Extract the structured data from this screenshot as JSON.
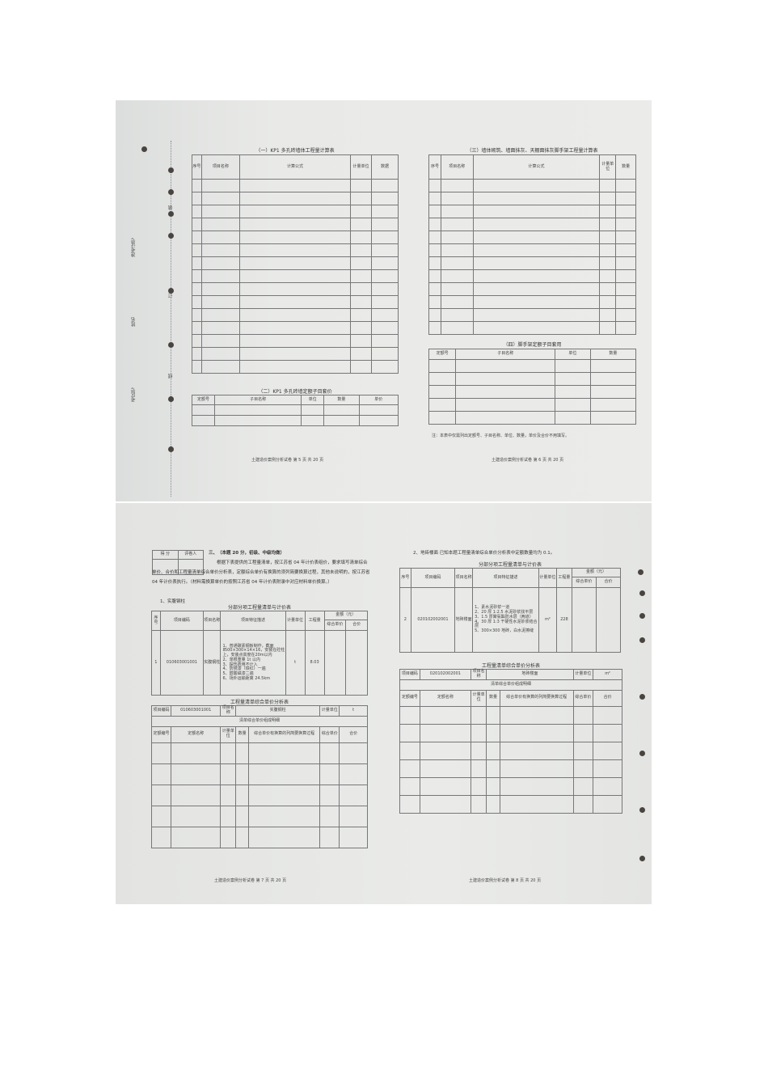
{
  "sheet1": {
    "margin": {
      "label1": "准考证号",
      "label2": "姓名",
      "label3": "考区号",
      "bind1": "装",
      "bind2": "订",
      "bind3": "线"
    },
    "table1": {
      "title": "（一）KP1 多孔砖墙体工程量计算表",
      "headers": [
        "序号",
        "项目名称",
        "计算公式",
        "计量单位",
        "数据"
      ]
    },
    "table2": {
      "title": "（二）KP1 多孔砖墙定额子目套价",
      "headers": [
        "定额号",
        "子目名称",
        "单位",
        "数量",
        "单价"
      ]
    },
    "table3": {
      "title": "（三）墙体砌筑、墙面抹灰、天棚面抹灰脚手架工程量计算表",
      "headers": [
        "序号",
        "项目名称",
        "计算公式",
        "计量单位",
        "数量"
      ]
    },
    "table4": {
      "title": "（四）脚手架定额子目套用",
      "headers": [
        "定额号",
        "子目名称",
        "单位",
        "数量"
      ]
    },
    "note": "注：本表中仅需列出定额号、子目名称、单位、数量，单价及合价不用填写。",
    "footer_left": "土建造价案例分析试卷 第 5 页  共 20 页",
    "footer_right": "土建造价案例分析试卷 第 6 页  共 20 页"
  },
  "sheet2": {
    "score_box": {
      "score": "得 分",
      "reviewer": "评卷人"
    },
    "question_title": "三、（本题 20 分，初级、中级均做）",
    "question_text": "根据下表提供的工程量清单，按江苏省 04 年计价表组价，要求填写清单综合单价、合价和工程量清单综合单价分析表，定额综合单价有换算的须列简要换算过程，其他未说明的，按江苏省 04 年计价表执行。（材料需换算单价的按照江苏省 04 年计价表附录中对应材料单价换算。）",
    "sub1": "1、实腹钢柱",
    "list_title": "分部分项工程量清单与计价表",
    "list_headers": {
      "no": "序号",
      "code": "项目编码",
      "name": "项目名称",
      "desc": "项目特征描述",
      "unit": "计量单位",
      "qty": "工程量",
      "amount": "金额（元）",
      "unit_price": "综合单价",
      "total": "合价"
    },
    "item1": {
      "no": "1",
      "code": "010603001001",
      "name": "实腹钢柱",
      "desc": "1、普通碳素钢板制作，截面Ⅱ500×300×14×16，安装在砼柱上，安装点高度在20m以内\n2、单根重量 1t 以内\n3、探伤费用不计入\n4、防锈漆（铁红）一遍\n5、醇酸磁漆二遍\n6、场外运输距离 24.5km",
      "unit": "t",
      "qty": "8.03"
    },
    "analysis_title": "工程量清单综合单价分析表",
    "analysis_labels": {
      "code": "项目编码",
      "name": "项目名称",
      "unit": "计量单位",
      "detail": "清单综合单价组成明细",
      "quota_no": "定额编号",
      "quota_name": "定额名称",
      "q_unit": "计量单位",
      "q_qty": "数量",
      "process": "综合单价有换算的列简要换算过程",
      "unit_price": "综合单价",
      "total": "合价"
    },
    "analysis1": {
      "code": "010603001001",
      "name": "实腹钢柱",
      "unit": "t"
    },
    "sub2": "2、地砖楼面 已知本题工程量清单综合单价分析表中定额数量均为 0.1。",
    "item2": {
      "no": "2",
      "code": "020102002001",
      "name": "地砖楼面",
      "desc": "1、素水泥砂浆一道\n2、20 厚 1:2.5 水泥砂浆找平层\n3、1.5 厚聚氨酯防水层（两道）\n4、30 厚 1:3 干硬性水泥砂浆结合层\n5、300×300 地砖，白水泥擦缝",
      "unit": "m²",
      "qty": "228"
    },
    "analysis2": {
      "code": "020102002001",
      "name": "地砖楼面",
      "unit": "m²"
    },
    "footer_left": "土建造价案例分析试卷 第 7 页  共 20 页",
    "footer_right": "土建造价案例分析试卷 第 8 页  共 20 页"
  }
}
